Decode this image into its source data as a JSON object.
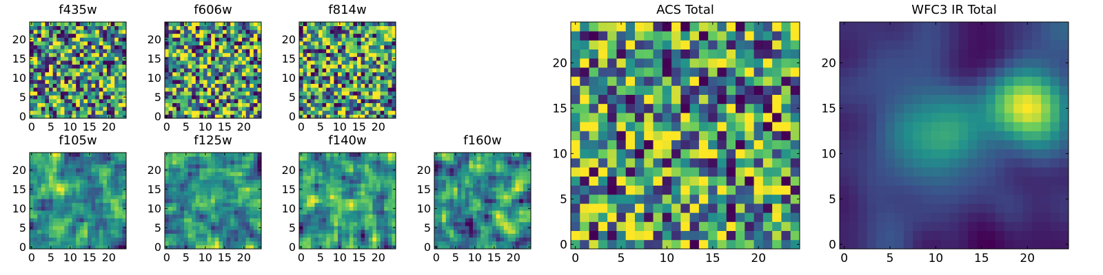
{
  "figure": {
    "colormap": [
      "#440154",
      "#3b528b",
      "#21918c",
      "#5ec962",
      "#fde725"
    ]
  },
  "chart_data": [
    {
      "id": "f435w",
      "type": "heatmap",
      "title": "f435w",
      "grid": false,
      "xlim": [
        -0.5,
        24.5
      ],
      "ylim": [
        -0.5,
        24.5
      ],
      "xticks": [
        0,
        5,
        10,
        15,
        20
      ],
      "yticks": [
        0,
        5,
        10,
        15,
        20
      ],
      "z_size": [
        25,
        25
      ],
      "pattern": "noise",
      "seed": 11
    },
    {
      "id": "f606w",
      "type": "heatmap",
      "title": "f606w",
      "grid": false,
      "xlim": [
        -0.5,
        24.5
      ],
      "ylim": [
        -0.5,
        24.5
      ],
      "xticks": [
        0,
        5,
        10,
        15,
        20
      ],
      "yticks": [
        0,
        5,
        10,
        15,
        20
      ],
      "z_size": [
        25,
        25
      ],
      "pattern": "noise",
      "seed": 23
    },
    {
      "id": "f814w",
      "type": "heatmap",
      "title": "f814w",
      "grid": false,
      "xlim": [
        -0.5,
        24.5
      ],
      "ylim": [
        -0.5,
        24.5
      ],
      "xticks": [
        0,
        5,
        10,
        15,
        20
      ],
      "yticks": [
        0,
        5,
        10,
        15,
        20
      ],
      "z_size": [
        25,
        25
      ],
      "pattern": "noise",
      "seed": 37
    },
    {
      "id": "f105w",
      "type": "heatmap",
      "title": "f105w",
      "grid": false,
      "xlim": [
        -0.5,
        24.5
      ],
      "ylim": [
        -0.5,
        24.5
      ],
      "xticks": [
        0,
        5,
        10,
        15,
        20
      ],
      "yticks": [
        0,
        5,
        10,
        15,
        20
      ],
      "z_size": [
        25,
        25
      ],
      "pattern": "smooth",
      "seed": 41
    },
    {
      "id": "f125w",
      "type": "heatmap",
      "title": "f125w",
      "grid": false,
      "xlim": [
        -0.5,
        24.5
      ],
      "ylim": [
        -0.5,
        24.5
      ],
      "xticks": [
        0,
        5,
        10,
        15,
        20
      ],
      "yticks": [
        0,
        5,
        10,
        15,
        20
      ],
      "z_size": [
        25,
        25
      ],
      "pattern": "smooth",
      "seed": 53
    },
    {
      "id": "f140w",
      "type": "heatmap",
      "title": "f140w",
      "grid": false,
      "xlim": [
        -0.5,
        24.5
      ],
      "ylim": [
        -0.5,
        24.5
      ],
      "xticks": [
        0,
        5,
        10,
        15,
        20
      ],
      "yticks": [
        0,
        5,
        10,
        15,
        20
      ],
      "z_size": [
        25,
        25
      ],
      "pattern": "smooth",
      "seed": 67
    },
    {
      "id": "f160w",
      "type": "heatmap",
      "title": "f160w",
      "grid": false,
      "xlim": [
        -0.5,
        24.5
      ],
      "ylim": [
        -0.5,
        24.5
      ],
      "xticks": [
        0,
        5,
        10,
        15,
        20
      ],
      "yticks": [
        0,
        5,
        10,
        15,
        20
      ],
      "z_size": [
        25,
        25
      ],
      "pattern": "smooth",
      "seed": 79
    },
    {
      "id": "acs-total",
      "type": "heatmap",
      "title": "ACS Total",
      "grid": false,
      "xlim": [
        -0.5,
        24.5
      ],
      "ylim": [
        -0.5,
        24.5
      ],
      "xticks": [
        0,
        5,
        10,
        15,
        20
      ],
      "yticks": [
        0,
        5,
        10,
        15,
        20
      ],
      "z_size": [
        25,
        25
      ],
      "pattern": "noise",
      "seed": 97
    },
    {
      "id": "wfc3-ir-total",
      "type": "heatmap",
      "title": "WFC3 IR Total",
      "grid": false,
      "xlim": [
        -0.5,
        24.5
      ],
      "ylim": [
        -0.5,
        24.5
      ],
      "xticks": [
        0,
        5,
        10,
        15,
        20
      ],
      "yticks": [
        0,
        5,
        10,
        15,
        20
      ],
      "z_size": [
        25,
        25
      ],
      "pattern": "blob",
      "seed": 101
    }
  ]
}
